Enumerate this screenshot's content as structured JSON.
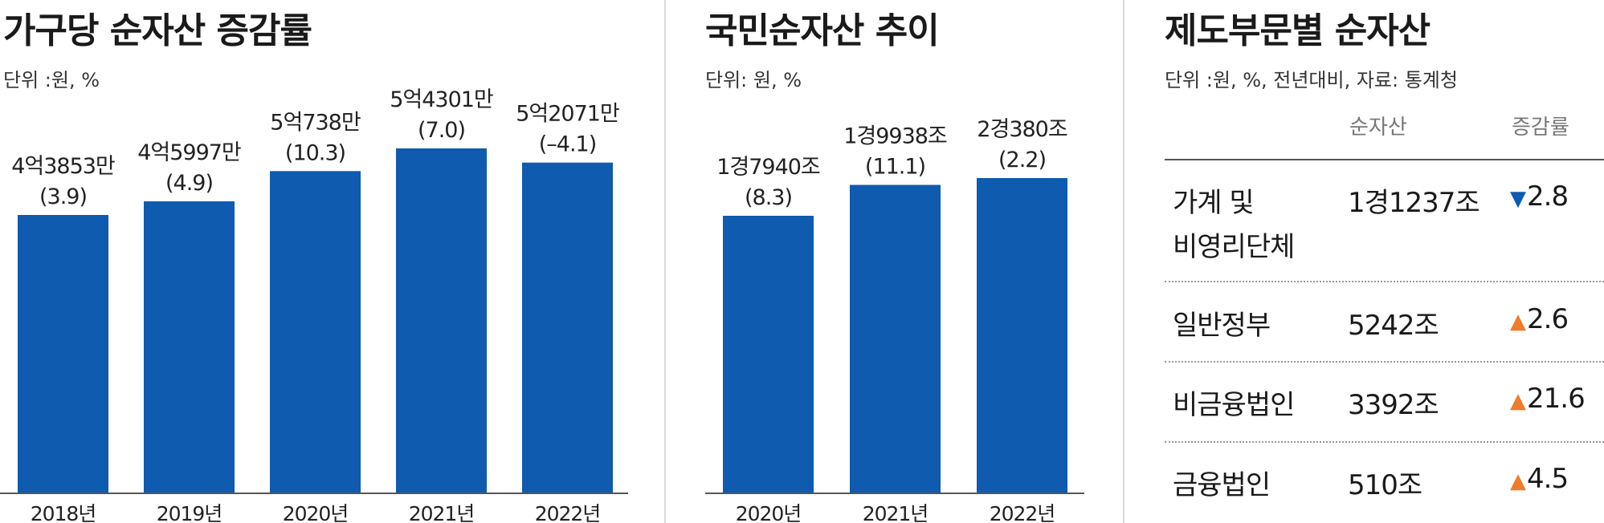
{
  "chart_data": [
    {
      "type": "bar",
      "title": "가구당 순자산 증감률",
      "unit_note": "단위 :원, %",
      "categories": [
        "2018년",
        "2019년",
        "2020년",
        "2021년",
        "2022년"
      ],
      "values": [
        438530000,
        459970000,
        507380000,
        543010000,
        520710000
      ],
      "value_labels": [
        "4억3853만",
        "4억5997만",
        "5억738만",
        "5억4301만",
        "5억2071만"
      ],
      "change_labels": [
        "(3.9)",
        "(4.9)",
        "(10.3)",
        "(7.0)",
        "(–4.1)"
      ],
      "change_pct": [
        3.9,
        4.9,
        10.3,
        7.0,
        -4.1
      ],
      "color": "#0e5bb0"
    },
    {
      "type": "bar",
      "title": "국민순자산 추이",
      "unit_note": "단위: 원, %",
      "categories": [
        "2020년",
        "2021년",
        "2022년"
      ],
      "values": [
        17940,
        19938,
        20380
      ],
      "value_labels": [
        "1경7940조",
        "1경9938조",
        "2경380조"
      ],
      "change_labels": [
        "(8.3)",
        "(11.1)",
        "(2.2)"
      ],
      "change_pct": [
        8.3,
        11.1,
        2.2
      ],
      "color": "#0e5bb0"
    },
    {
      "type": "table",
      "title": "제도부문별 순자산",
      "unit_note": "단위 :원, %, 전년대비, 자료: 통계청",
      "columns": [
        "순자산",
        "증감률"
      ],
      "rows": [
        {
          "name1": "가계 및",
          "name2": "비영리단체",
          "net": "1경1237조",
          "dir": "down",
          "arrow": "▼",
          "change": "2.8"
        },
        {
          "name1": "일반정부",
          "name2": "",
          "net": "5242조",
          "dir": "up",
          "arrow": "▲",
          "change": "2.6"
        },
        {
          "name1": "비금융법인",
          "name2": "",
          "net": "3392조",
          "dir": "up",
          "arrow": "▲",
          "change": "21.6"
        },
        {
          "name1": "금융법인",
          "name2": "",
          "net": "510조",
          "dir": "up",
          "arrow": "▲",
          "change": "4.5"
        }
      ],
      "colors": {
        "down": "#0e5bb0",
        "up": "#f07b2a"
      }
    }
  ]
}
